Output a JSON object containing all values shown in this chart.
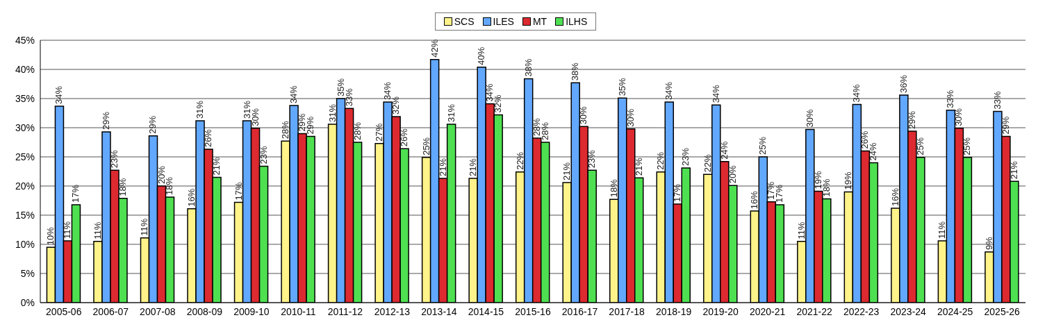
{
  "chart_data": {
    "type": "bar",
    "categories": [
      "2005-06",
      "2006-07",
      "2007-08",
      "2008-09",
      "2009-10",
      "2010-11",
      "2011-12",
      "2012-13",
      "2013-14",
      "2014-15",
      "2015-16",
      "2016-17",
      "2017-18",
      "2018-19",
      "2019-20",
      "2020-21",
      "2021-22",
      "2022-23",
      "2023-24",
      "2024-25",
      "2025-26"
    ],
    "series": [
      {
        "name": "SCS",
        "color": "#fff38a",
        "values": [
          9.5,
          10.5,
          11.1,
          16.1,
          17.2,
          27.7,
          30.6,
          27.3,
          24.9,
          21.3,
          22.4,
          20.6,
          17.7,
          22.4,
          22.0,
          15.7,
          10.5,
          19.0,
          16.2,
          10.6,
          8.7
        ],
        "value_labels": [
          "10%",
          "11%",
          "11%",
          "16%",
          "17%",
          "28%",
          "31%",
          "27%",
          "25%",
          "21%",
          "22%",
          "21%",
          "18%",
          "22%",
          "22%",
          "16%",
          "11%",
          "19%",
          "16%",
          "11%",
          "9%"
        ]
      },
      {
        "name": "ILES",
        "color": "#62a8ff",
        "values": [
          33.7,
          29.3,
          28.6,
          31.2,
          31.2,
          33.8,
          35.0,
          34.4,
          41.7,
          40.4,
          38.4,
          37.7,
          35.1,
          34.4,
          33.9,
          25.0,
          29.7,
          34.0,
          35.6,
          33.0,
          32.8
        ],
        "value_labels": [
          "34%",
          "29%",
          "29%",
          "31%",
          "31%",
          "34%",
          "35%",
          "34%",
          "42%",
          "40%",
          "38%",
          "38%",
          "35%",
          "34%",
          "34%",
          "25%",
          "30%",
          "34%",
          "36%",
          "33%",
          "33%"
        ]
      },
      {
        "name": "MT",
        "color": "#dc2a30",
        "values": [
          10.6,
          22.7,
          20.0,
          26.3,
          29.9,
          29.0,
          33.3,
          31.9,
          21.3,
          34.1,
          28.2,
          30.2,
          29.8,
          16.9,
          24.2,
          17.3,
          19.1,
          26.0,
          29.4,
          29.9,
          28.5
        ],
        "value_labels": [
          "11%",
          "23%",
          "20%",
          "26%",
          "30%",
          "29%",
          "33%",
          "32%",
          "21%",
          "34%",
          "28%",
          "30%",
          "30%",
          "17%",
          "24%",
          "17%",
          "19%",
          "26%",
          "29%",
          "30%",
          "29%"
        ]
      },
      {
        "name": "ILHS",
        "color": "#4fe052",
        "values": [
          16.8,
          17.9,
          18.1,
          21.5,
          23.4,
          28.5,
          27.5,
          26.4,
          30.6,
          32.2,
          27.5,
          22.7,
          21.4,
          23.1,
          20.1,
          16.8,
          17.8,
          24.0,
          24.9,
          24.9,
          20.8
        ],
        "value_labels": [
          "17%",
          "18%",
          "18%",
          "21%",
          "23%",
          "29%",
          "28%",
          "26%",
          "31%",
          "32%",
          "28%",
          "23%",
          "21%",
          "23%",
          "20%",
          "17%",
          "18%",
          "24%",
          "25%",
          "25%",
          "21%"
        ]
      }
    ],
    "ylim": [
      0,
      45
    ],
    "yticks": [
      {
        "value": 0,
        "label": "0%"
      },
      {
        "value": 5,
        "label": "5%"
      },
      {
        "value": 10,
        "label": "10%"
      },
      {
        "value": 15,
        "label": "15%"
      },
      {
        "value": 20,
        "label": "20%"
      },
      {
        "value": 25,
        "label": "25%"
      },
      {
        "value": 30,
        "label": "30%"
      },
      {
        "value": 35,
        "label": "35%"
      },
      {
        "value": 40,
        "label": "40%"
      },
      {
        "value": 45,
        "label": "45%"
      }
    ],
    "grid": "y",
    "legend": "top"
  }
}
